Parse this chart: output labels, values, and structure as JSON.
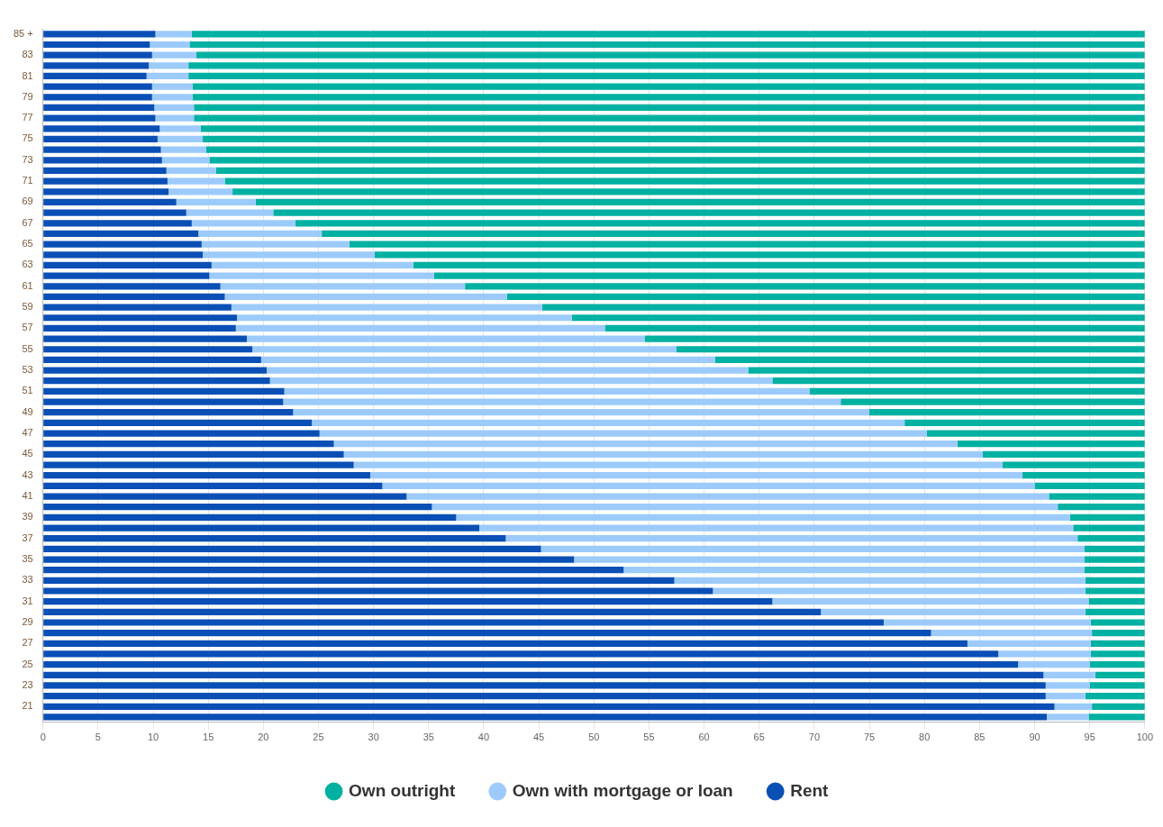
{
  "chart_data": {
    "type": "bar",
    "orientation": "horizontal",
    "stacked": true,
    "categories": [
      "85 +",
      null,
      "83",
      null,
      "81",
      null,
      "79",
      null,
      "77",
      null,
      "75",
      null,
      "73",
      null,
      "71",
      null,
      "69",
      null,
      "67",
      null,
      "65",
      null,
      "63",
      null,
      "61",
      null,
      "59",
      null,
      "57",
      null,
      "55",
      null,
      "53",
      null,
      "51",
      null,
      "49",
      null,
      "47",
      null,
      "45",
      null,
      "43",
      null,
      "41",
      null,
      "39",
      null,
      "37",
      null,
      "35",
      null,
      "33",
      null,
      "31",
      null,
      "29",
      null,
      "27",
      null,
      "25",
      null,
      "23",
      null,
      "21",
      null
    ],
    "series": [
      {
        "name": "Rent",
        "color": "#0a4fb5",
        "values": [
          10.2,
          9.7,
          9.9,
          9.6,
          9.4,
          9.9,
          9.9,
          10.1,
          10.2,
          10.6,
          10.4,
          10.7,
          10.8,
          11.2,
          11.3,
          11.4,
          12.1,
          13.0,
          13.5,
          14.1,
          14.4,
          14.5,
          15.3,
          15.1,
          16.1,
          16.5,
          17.1,
          17.6,
          17.5,
          18.5,
          19.0,
          19.8,
          20.3,
          20.6,
          21.9,
          21.8,
          22.7,
          24.4,
          25.1,
          26.4,
          27.3,
          28.2,
          29.7,
          30.8,
          33.0,
          35.3,
          37.5,
          39.6,
          42.0,
          45.2,
          48.2,
          52.7,
          57.3,
          60.8,
          66.2,
          70.6,
          76.3,
          80.6,
          83.9,
          86.7,
          88.5,
          90.8,
          91.0,
          91.0,
          91.8,
          91.1
        ]
      },
      {
        "name": "Own with mortgage or loan",
        "color": "#9ccbfb",
        "values": [
          3.3,
          3.6,
          4.0,
          3.6,
          3.8,
          3.7,
          3.7,
          3.6,
          3.5,
          3.7,
          4.1,
          4.1,
          4.3,
          4.5,
          5.2,
          5.8,
          7.2,
          7.9,
          9.4,
          11.2,
          13.4,
          15.6,
          18.3,
          20.4,
          22.2,
          25.6,
          28.2,
          30.4,
          33.5,
          36.1,
          38.5,
          41.2,
          43.7,
          45.6,
          47.7,
          50.6,
          52.3,
          53.8,
          55.1,
          56.6,
          58.0,
          58.9,
          59.2,
          59.2,
          58.3,
          56.8,
          55.7,
          53.9,
          51.9,
          49.3,
          46.3,
          41.8,
          37.3,
          33.8,
          28.7,
          24.0,
          18.8,
          14.6,
          11.2,
          8.4,
          6.5,
          4.7,
          4.0,
          3.6,
          3.4,
          3.8
        ]
      },
      {
        "name": "Own outright",
        "color": "#00b0a0",
        "values": [
          86.5,
          86.7,
          86.1,
          86.8,
          86.8,
          86.4,
          86.4,
          86.3,
          86.3,
          85.7,
          85.5,
          85.2,
          84.9,
          84.3,
          83.5,
          82.8,
          80.7,
          79.1,
          77.1,
          74.7,
          72.2,
          69.9,
          66.4,
          64.5,
          61.7,
          57.9,
          54.7,
          52.0,
          49.0,
          45.4,
          42.5,
          39.0,
          36.0,
          33.8,
          30.4,
          27.6,
          25.0,
          21.8,
          19.8,
          17.0,
          14.7,
          12.9,
          11.1,
          10.0,
          8.7,
          7.9,
          6.8,
          6.5,
          6.1,
          5.5,
          5.5,
          5.5,
          5.4,
          5.4,
          5.1,
          5.4,
          4.9,
          4.8,
          4.9,
          4.9,
          5.0,
          4.5,
          5.0,
          5.4,
          4.8,
          5.1
        ]
      }
    ],
    "xlim": [
      0,
      100
    ],
    "xticks": [
      0,
      5,
      10,
      15,
      20,
      25,
      30,
      35,
      40,
      45,
      50,
      55,
      60,
      65,
      70,
      75,
      80,
      85,
      90,
      95,
      100
    ],
    "grid": "x",
    "legend": "bottom"
  }
}
